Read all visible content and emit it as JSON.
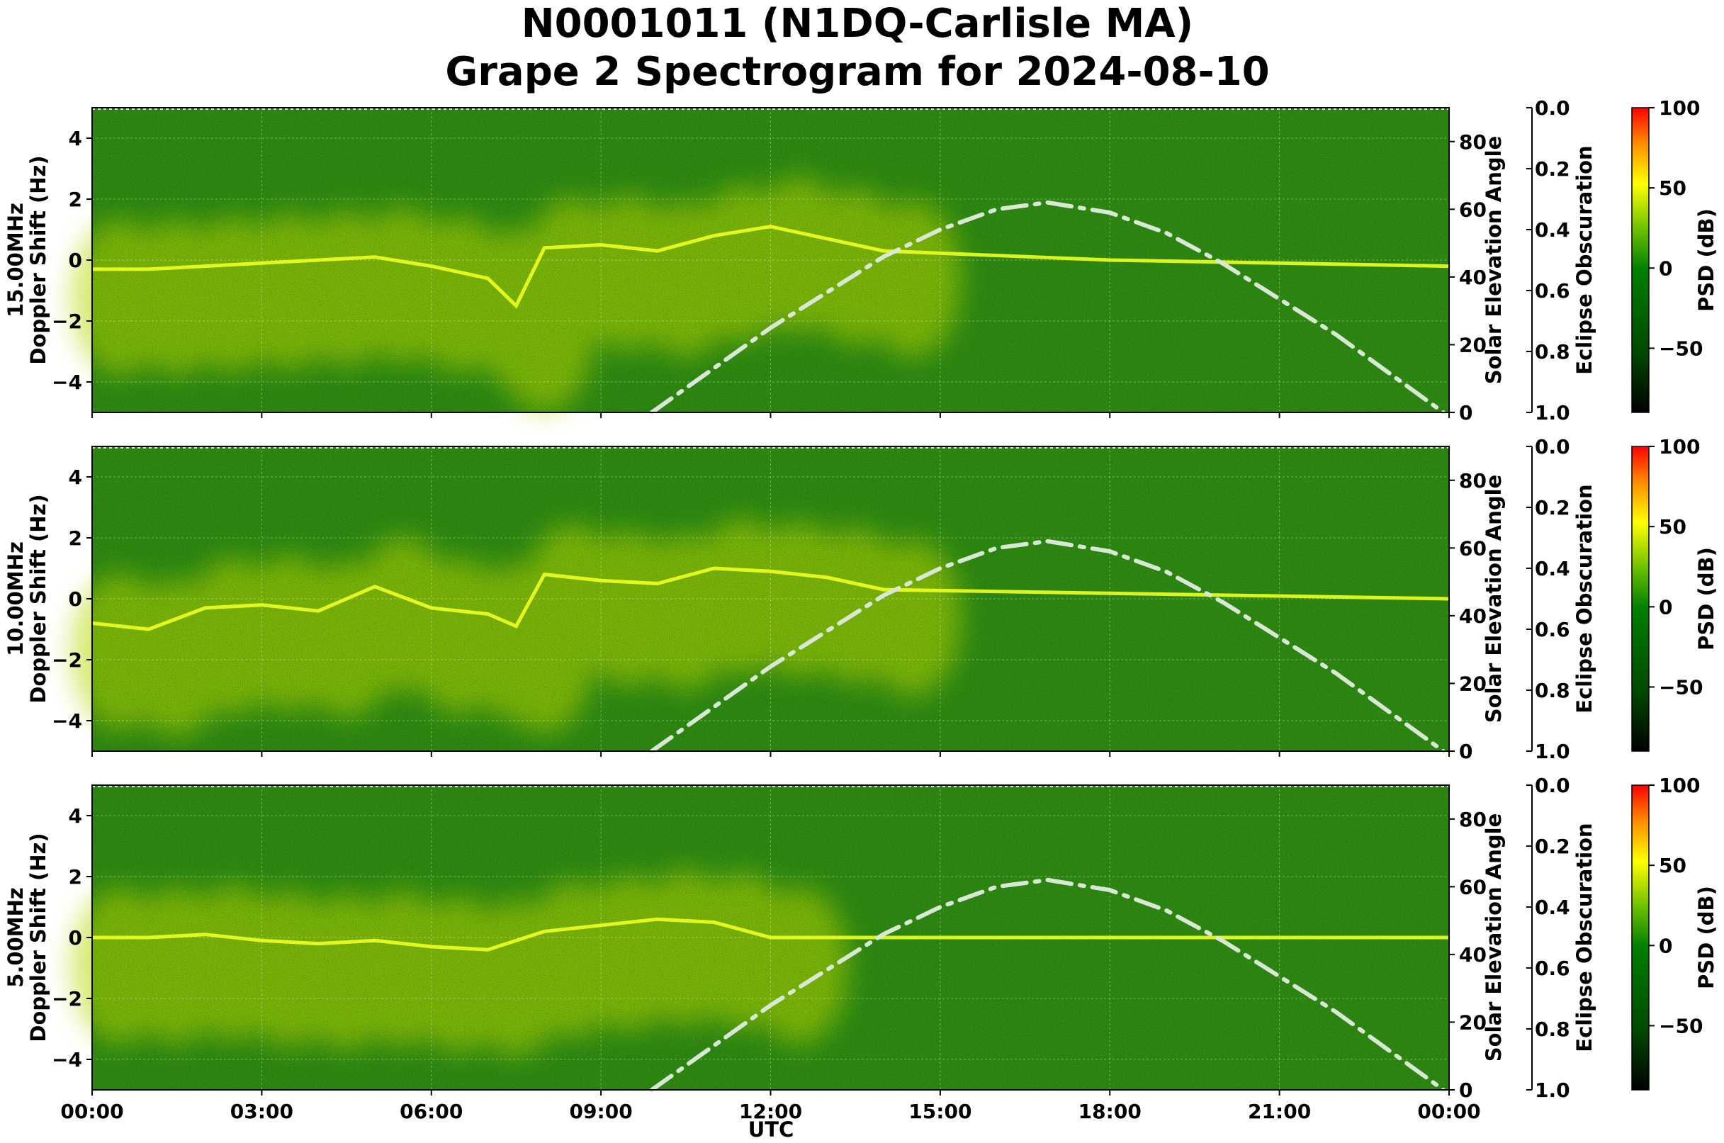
{
  "chart_data": {
    "type": "heatmap",
    "title_line1": "N0001011 (N1DQ-Carlisle MA)",
    "title_line2": "Grape 2 Spectrogram for 2024-08-10",
    "xlabel": "UTC",
    "x_ticks": [
      "00:00",
      "03:00",
      "06:00",
      "09:00",
      "12:00",
      "15:00",
      "18:00",
      "21:00",
      "00:00"
    ],
    "x_range_hours": [
      0,
      24
    ],
    "doppler_label": "Doppler Shift (Hz)",
    "doppler_ylim": [
      -5,
      5
    ],
    "doppler_ticks": [
      4,
      2,
      0,
      -2,
      -4
    ],
    "solar_label": "Solar Elevation Angle",
    "solar_ylim": [
      0,
      90
    ],
    "solar_ticks": [
      80,
      60,
      40,
      20,
      0
    ],
    "eclipse_label": "Eclipse Obscuration",
    "eclipse_ylim": [
      0.0,
      1.0
    ],
    "eclipse_ticks": [
      "0.0",
      "0.2",
      "0.4",
      "0.6",
      "0.8",
      "1.0"
    ],
    "colorbar": {
      "label": "PSD (dB)",
      "range": [
        -90,
        100
      ],
      "ticks": [
        "100",
        "50",
        "0",
        "−50"
      ],
      "colors": [
        "#000000",
        "#006400",
        "#008000",
        "#ffff00",
        "#ff0000"
      ]
    },
    "solar_elevation_curve": {
      "x_hours": [
        9.9,
        12,
        14,
        15,
        16,
        16.9,
        18,
        19,
        20,
        22,
        23.9
      ],
      "elevation_deg": [
        0,
        25,
        46,
        54,
        60,
        62,
        59,
        53,
        44,
        23,
        0
      ]
    },
    "panels": [
      {
        "frequency_label": "15.00MHz",
        "carrier_trace": {
          "x_hours": [
            0,
            1,
            2,
            3,
            4,
            5,
            6,
            7,
            7.5,
            8,
            9,
            10,
            11,
            12,
            13,
            14,
            18,
            24
          ],
          "doppler_hz": [
            -0.3,
            -0.3,
            -0.2,
            -0.1,
            0.0,
            0.1,
            -0.2,
            -0.6,
            -1.5,
            0.4,
            0.5,
            0.3,
            0.8,
            1.1,
            0.7,
            0.3,
            0.0,
            -0.2
          ]
        }
      },
      {
        "frequency_label": "10.00MHz",
        "carrier_trace": {
          "x_hours": [
            0,
            1,
            2,
            3,
            4,
            5,
            6,
            7,
            7.5,
            8,
            9,
            10,
            11,
            12,
            13,
            14,
            24
          ],
          "doppler_hz": [
            -0.8,
            -1.0,
            -0.3,
            -0.2,
            -0.4,
            0.4,
            -0.3,
            -0.5,
            -0.9,
            0.8,
            0.6,
            0.5,
            1.0,
            0.9,
            0.7,
            0.3,
            0.0
          ]
        }
      },
      {
        "frequency_label": "5.00MHz",
        "carrier_trace": {
          "x_hours": [
            0,
            1,
            2,
            3,
            4,
            5,
            6,
            7,
            8,
            9,
            10,
            11,
            12,
            24
          ],
          "doppler_hz": [
            0.0,
            0.0,
            0.1,
            -0.1,
            -0.2,
            -0.1,
            -0.3,
            -0.4,
            0.2,
            0.4,
            0.6,
            0.5,
            0.0,
            0.0
          ]
        }
      }
    ]
  }
}
